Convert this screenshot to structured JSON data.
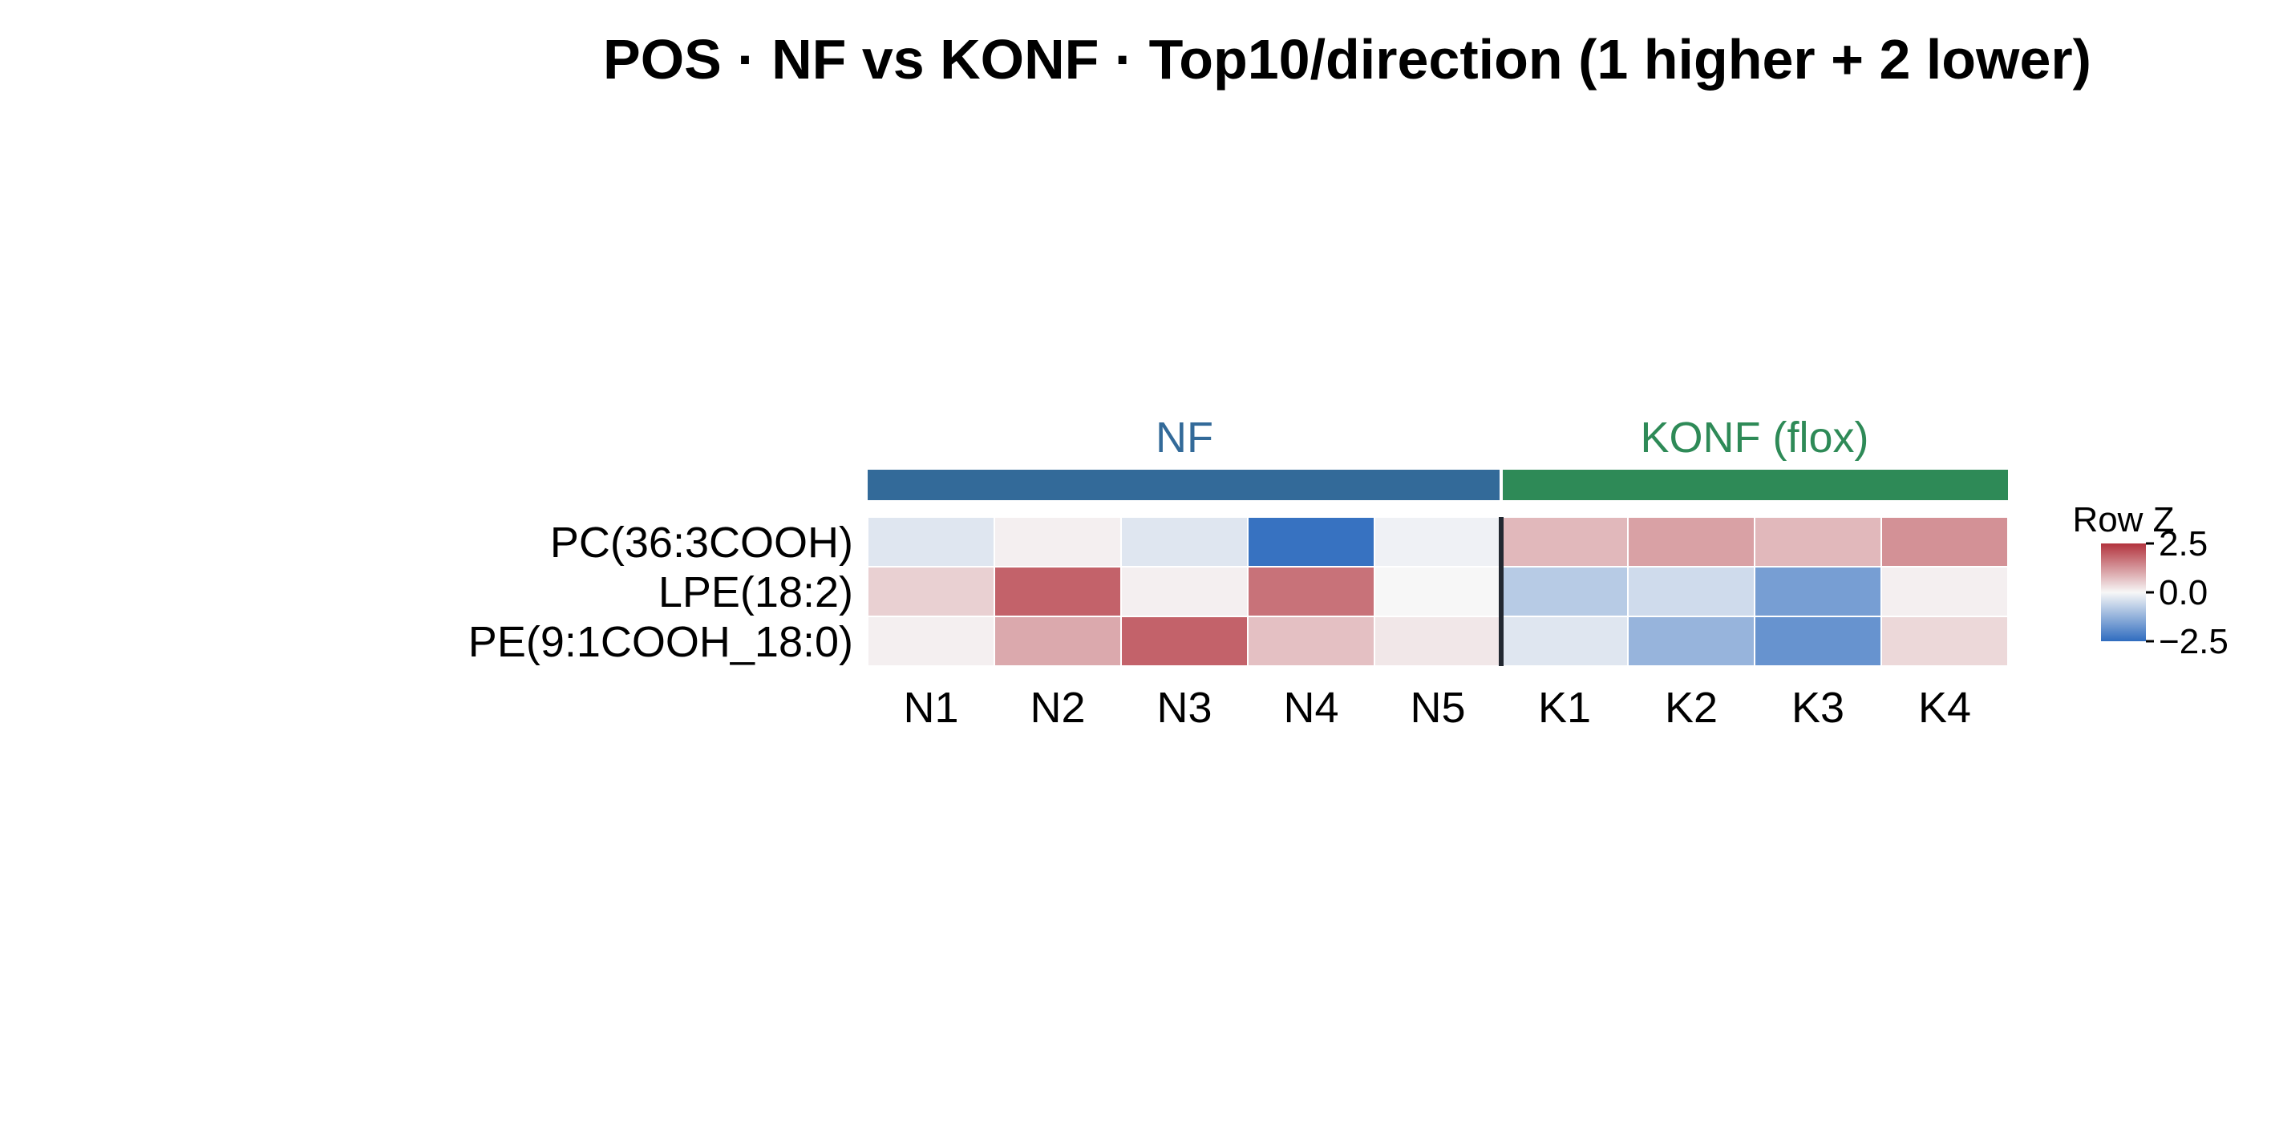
{
  "chart_data": {
    "type": "heatmap",
    "title": "POS · NF vs KONF · Top10/direction (1 higher + 2 lower)",
    "groups": [
      {
        "name": "NF",
        "color": "#336a99",
        "columns": [
          "N1",
          "N2",
          "N3",
          "N4",
          "N5"
        ]
      },
      {
        "name": "KONF (flox)",
        "color": "#2e8a57",
        "columns": [
          "K1",
          "K2",
          "K3",
          "K4"
        ]
      }
    ],
    "columns": [
      "N1",
      "N2",
      "N3",
      "N4",
      "N5",
      "K1",
      "K2",
      "K3",
      "K4"
    ],
    "rows": [
      "PC(36:3COOH)",
      "LPE(18:2)",
      "PE(9:1COOH_18:0)"
    ],
    "values": [
      [
        -0.3,
        0.1,
        -0.3,
        -2.4,
        -0.1,
        0.8,
        1.1,
        0.8,
        1.3
      ],
      [
        0.5,
        1.9,
        0.1,
        1.7,
        0.0,
        -0.8,
        -0.5,
        -1.6,
        0.1
      ],
      [
        0.1,
        1.0,
        1.9,
        0.7,
        0.2,
        -0.3,
        -1.2,
        -1.8,
        0.4
      ]
    ],
    "colorbar": {
      "title": "Row Z",
      "range": [
        -2.5,
        2.5
      ],
      "ticks": [
        2.5,
        0.0,
        -2.5
      ],
      "tick_labels": [
        "2.5",
        "0.0",
        "−2.5"
      ],
      "colors": {
        "low": "#2f6cbf",
        "mid": "#f7f7f7",
        "high": "#b2333d"
      }
    }
  }
}
